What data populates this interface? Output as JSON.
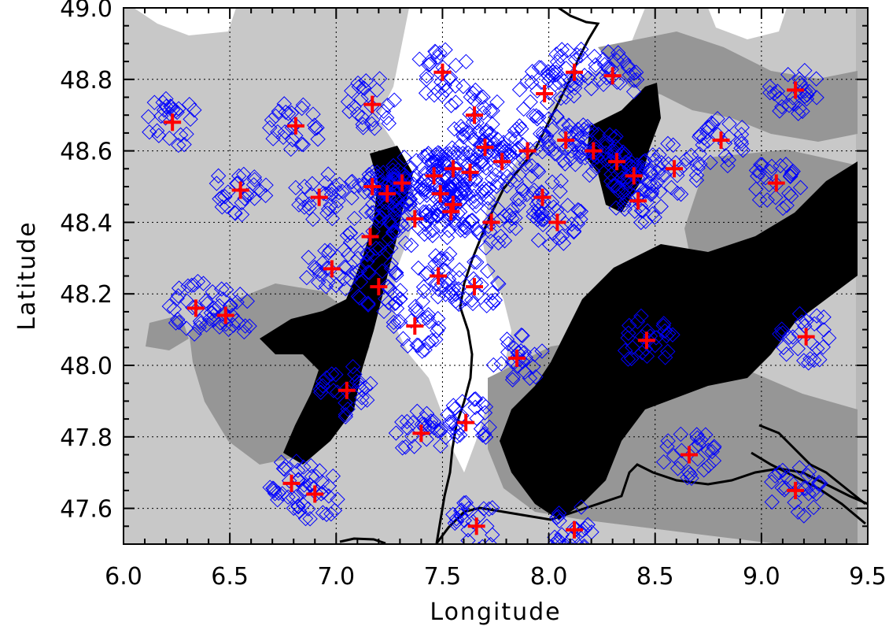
{
  "chart_data": {
    "type": "scatter",
    "xlabel": "Longitude",
    "ylabel": "Latitude",
    "xlim": [
      6.0,
      9.5
    ],
    "ylim": [
      47.5,
      49.0
    ],
    "x_ticks": [
      "6.0",
      "6.5",
      "7.0",
      "7.5",
      "8.0",
      "8.5",
      "9.0",
      "9.5"
    ],
    "y_ticks": [
      "47.6",
      "47.8",
      "48.0",
      "48.2",
      "48.4",
      "48.6",
      "48.8",
      "49.0"
    ],
    "grid": true,
    "colors": {
      "station_cross": "#ff0000",
      "footprint_diamond": "#0000ff",
      "terrain_low": "#ffffff",
      "terrain_mid": "#c8c8c8",
      "terrain_high": "#969696",
      "terrain_highest": "#000000",
      "border_line": "#000000"
    },
    "series": [
      {
        "marker": "red-cross",
        "points": [
          [
            6.23,
            48.68
          ],
          [
            6.81,
            48.67
          ],
          [
            7.17,
            48.73
          ],
          [
            7.5,
            48.82
          ],
          [
            7.98,
            48.76
          ],
          [
            8.12,
            48.82
          ],
          [
            8.3,
            48.81
          ],
          [
            9.16,
            48.77
          ],
          [
            7.65,
            48.7
          ],
          [
            7.7,
            48.61
          ],
          [
            7.78,
            48.57
          ],
          [
            7.9,
            48.6
          ],
          [
            8.08,
            48.63
          ],
          [
            8.21,
            48.6
          ],
          [
            8.32,
            48.57
          ],
          [
            8.4,
            48.53
          ],
          [
            8.42,
            48.46
          ],
          [
            8.59,
            48.55
          ],
          [
            8.81,
            48.63
          ],
          [
            9.07,
            48.51
          ],
          [
            6.55,
            48.49
          ],
          [
            6.92,
            48.47
          ],
          [
            7.17,
            48.5
          ],
          [
            7.24,
            48.48
          ],
          [
            7.31,
            48.51
          ],
          [
            7.37,
            48.41
          ],
          [
            7.46,
            48.53
          ],
          [
            7.49,
            48.48
          ],
          [
            7.55,
            48.55
          ],
          [
            7.63,
            48.54
          ],
          [
            7.55,
            48.45
          ],
          [
            7.54,
            48.43
          ],
          [
            7.73,
            48.4
          ],
          [
            7.97,
            48.47
          ],
          [
            8.04,
            48.4
          ],
          [
            7.16,
            48.36
          ],
          [
            6.98,
            48.27
          ],
          [
            7.2,
            48.22
          ],
          [
            7.48,
            48.25
          ],
          [
            7.65,
            48.22
          ],
          [
            6.34,
            48.16
          ],
          [
            6.48,
            48.14
          ],
          [
            7.37,
            48.11
          ],
          [
            7.85,
            48.02
          ],
          [
            8.46,
            48.07
          ],
          [
            9.21,
            48.08
          ],
          [
            7.05,
            47.93
          ],
          [
            7.4,
            47.81
          ],
          [
            7.61,
            47.84
          ],
          [
            8.66,
            47.75
          ],
          [
            6.79,
            47.67
          ],
          [
            6.9,
            47.64
          ],
          [
            9.16,
            47.65
          ],
          [
            7.66,
            47.55
          ],
          [
            8.12,
            47.54
          ]
        ]
      }
    ]
  }
}
